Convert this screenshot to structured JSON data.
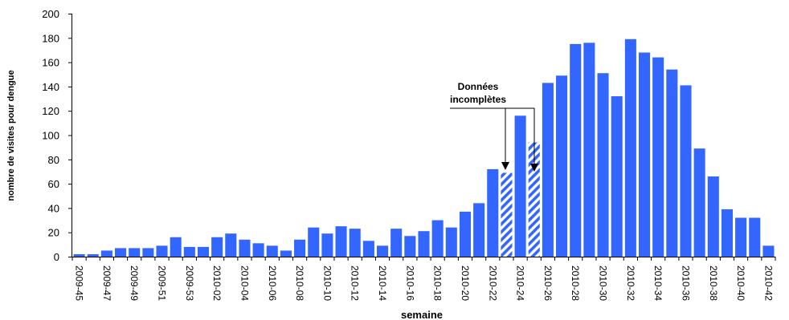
{
  "chart_data": {
    "type": "bar",
    "title": "",
    "xlabel": "semaine",
    "ylabel": "nombre de visites pour dengue",
    "ylim": [
      0,
      200
    ],
    "yticks": [
      0,
      20,
      40,
      60,
      80,
      100,
      120,
      140,
      160,
      180,
      200
    ],
    "grid": false,
    "colors": {
      "bar": "#3366ff",
      "hatch_stripe": "#3366ff",
      "axis": "#000000"
    },
    "categories": [
      "2009-45",
      "2009-46",
      "2009-47",
      "2009-48",
      "2009-49",
      "2009-50",
      "2009-51",
      "2009-52",
      "2009-53",
      "2010-01",
      "2010-02",
      "2010-03",
      "2010-04",
      "2010-05",
      "2010-06",
      "2010-07",
      "2010-08",
      "2010-09",
      "2010-10",
      "2010-11",
      "2010-12",
      "2010-13",
      "2010-14",
      "2010-15",
      "2010-16",
      "2010-17",
      "2010-18",
      "2010-19",
      "2010-20",
      "2010-21",
      "2010-22",
      "2010-23",
      "2010-24",
      "2010-25",
      "2010-26",
      "2010-27",
      "2010-28",
      "2010-29",
      "2010-30",
      "2010-31",
      "2010-32",
      "2010-33",
      "2010-34",
      "2010-35",
      "2010-36",
      "2010-37",
      "2010-38",
      "2010-39",
      "2010-40",
      "2010-41",
      "2010-42"
    ],
    "tick_labels": [
      "2009-45",
      "",
      "2009-47",
      "",
      "2009-49",
      "",
      "2009-51",
      "",
      "2009-53",
      "",
      "2010-02",
      "",
      "2010-04",
      "",
      "2010-06",
      "",
      "2010-08",
      "",
      "2010-10",
      "",
      "2010-12",
      "",
      "2010-14",
      "",
      "2010-16",
      "",
      "2010-18",
      "",
      "2010-20",
      "",
      "2010-22",
      "",
      "2010-24",
      "",
      "2010-26",
      "",
      "2010-28",
      "",
      "2010-30",
      "",
      "2010-32",
      "",
      "2010-34",
      "",
      "2010-36",
      "",
      "2010-38",
      "",
      "2010-40",
      "",
      "2010-42"
    ],
    "values": [
      2,
      2,
      5,
      7,
      7,
      7,
      9,
      16,
      8,
      8,
      16,
      19,
      14,
      11,
      9,
      5,
      14,
      24,
      19,
      25,
      23,
      13,
      9,
      23,
      17,
      21,
      30,
      24,
      37,
      44,
      72,
      69,
      116,
      94,
      143,
      149,
      175,
      176,
      151,
      132,
      179,
      168,
      164,
      154,
      141,
      89,
      66,
      39,
      32,
      32,
      9
    ],
    "incomplete": [
      false,
      false,
      false,
      false,
      false,
      false,
      false,
      false,
      false,
      false,
      false,
      false,
      false,
      false,
      false,
      false,
      false,
      false,
      false,
      false,
      false,
      false,
      false,
      false,
      false,
      false,
      false,
      false,
      false,
      false,
      false,
      true,
      false,
      true,
      false,
      false,
      false,
      false,
      false,
      false,
      false,
      false,
      false,
      false,
      false,
      false,
      false,
      false,
      false,
      false,
      false
    ],
    "annotation": {
      "line1": "Données",
      "line2": "incomplètes",
      "targets": [
        "2010-23",
        "2010-25"
      ]
    }
  }
}
